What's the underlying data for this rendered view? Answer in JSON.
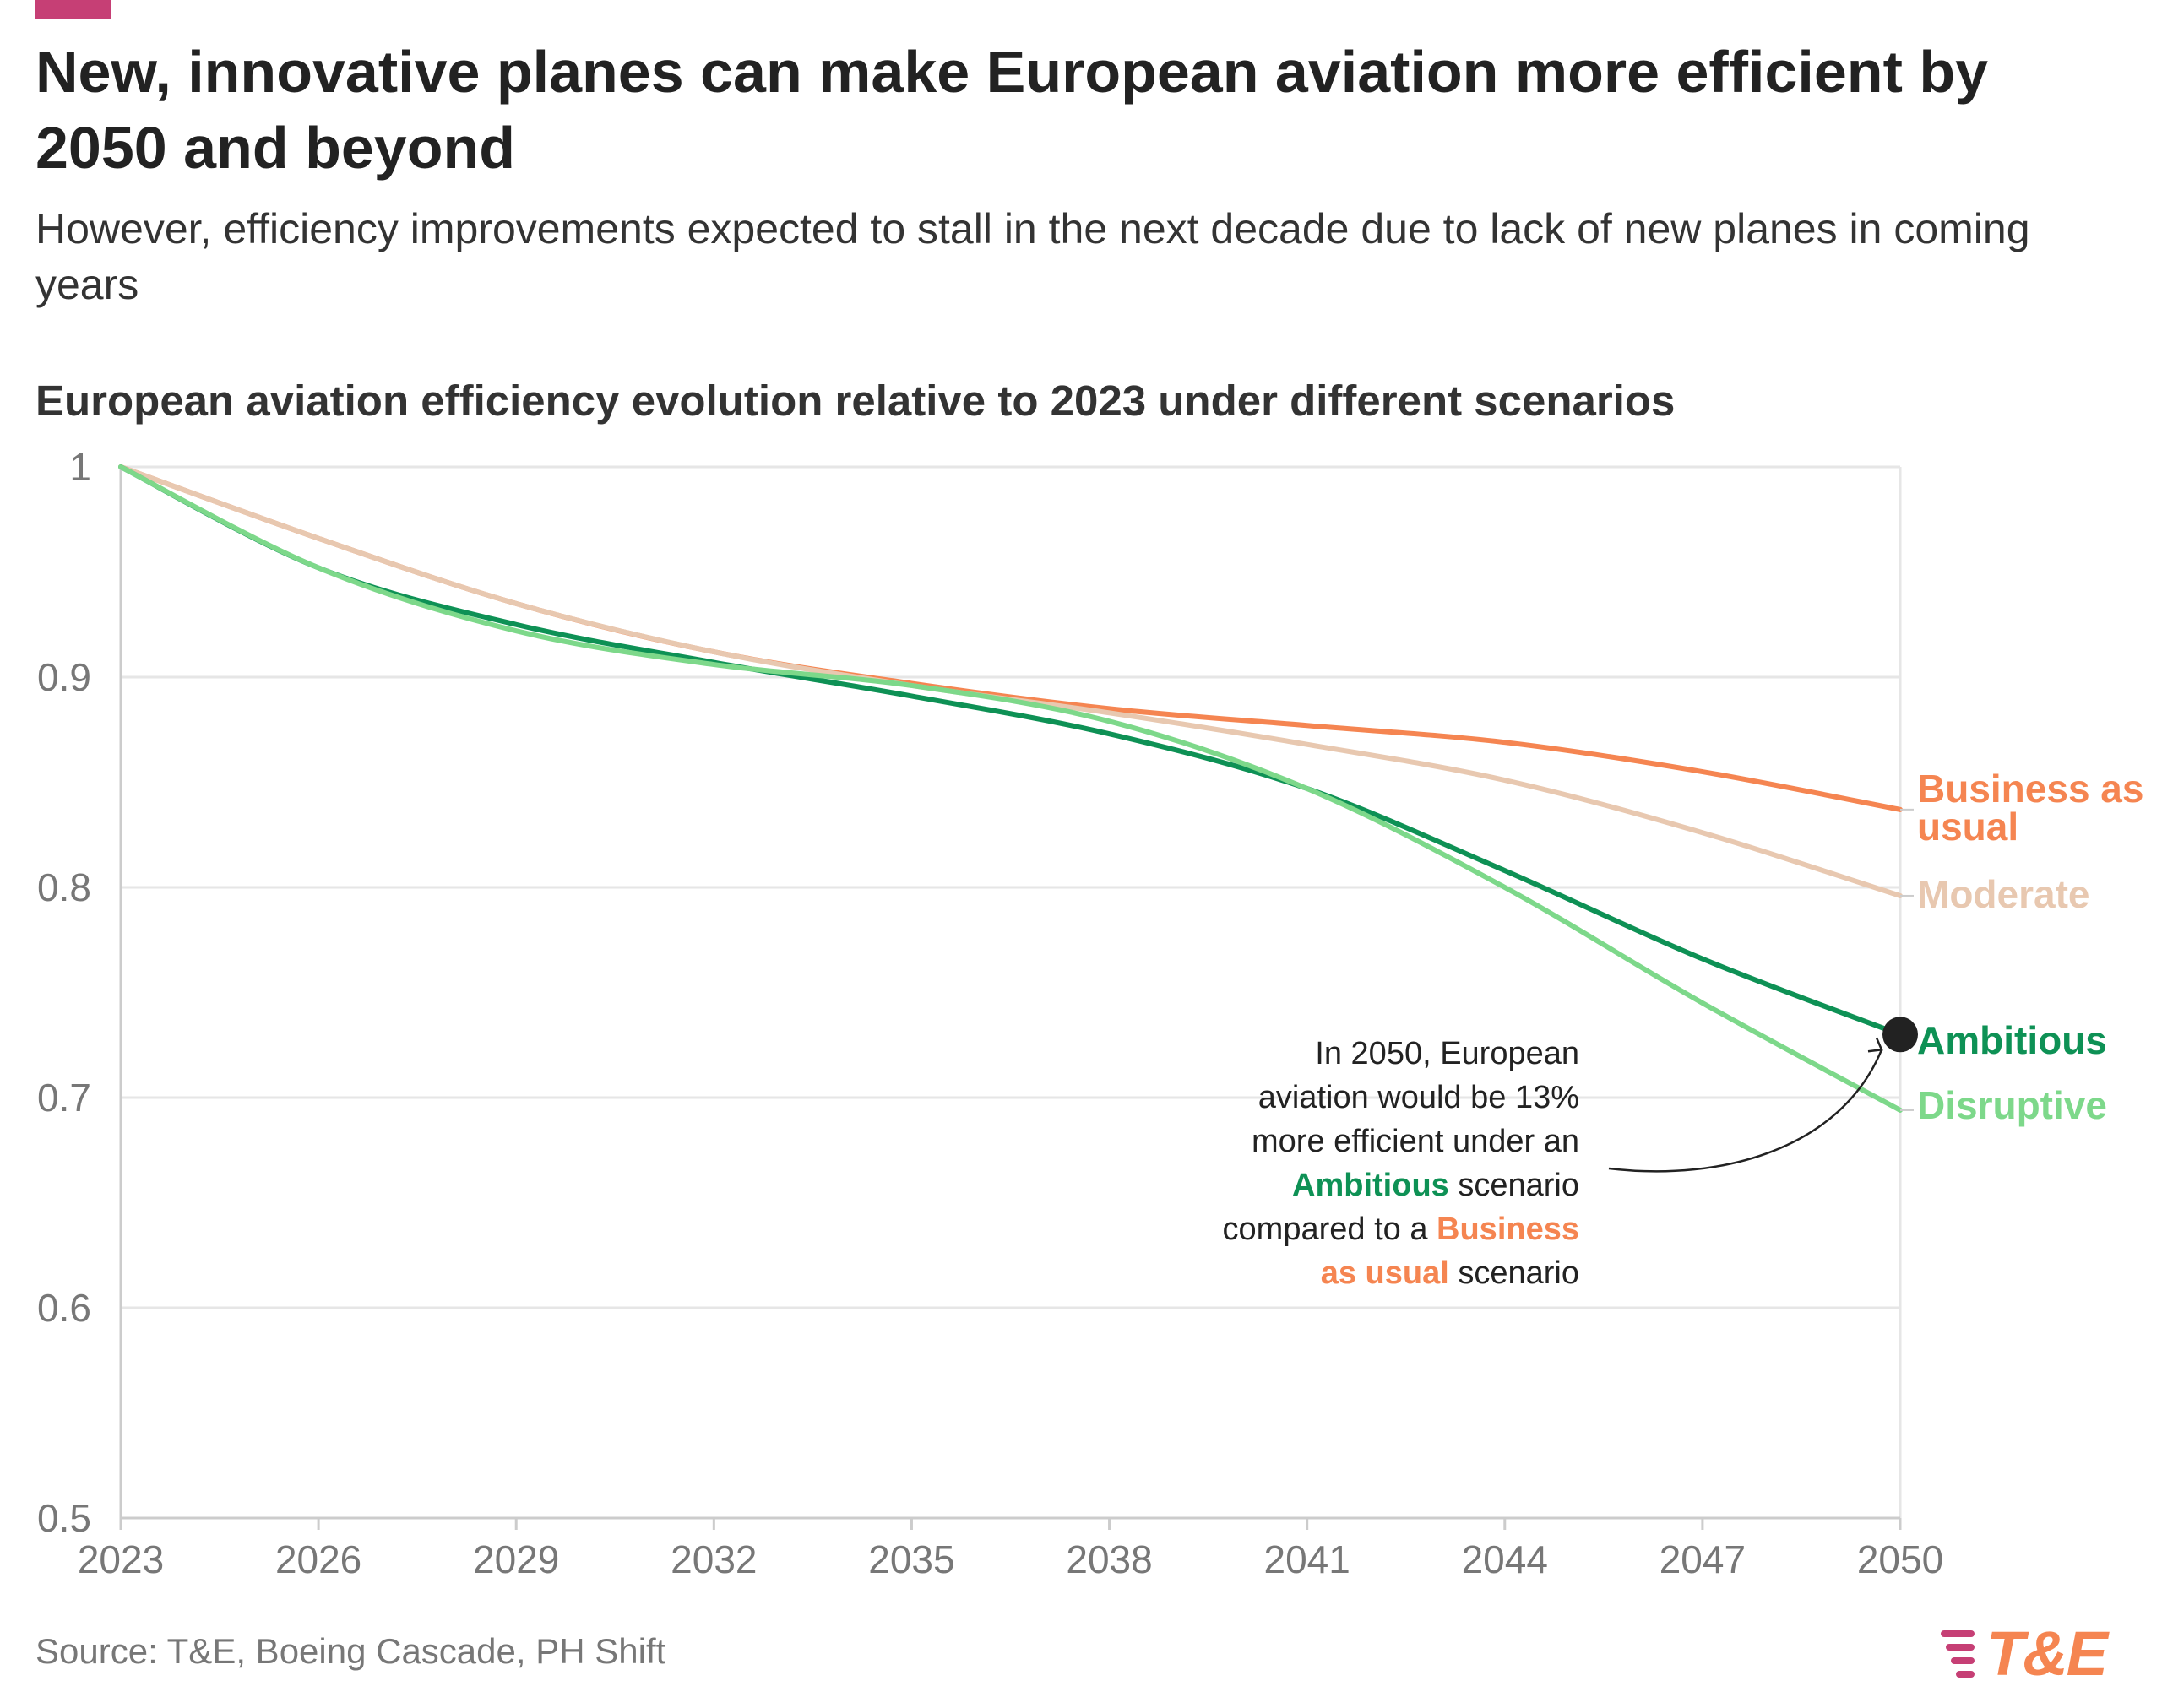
{
  "header": {
    "title": "New, innovative planes can make European aviation more efficient by 2050 and beyond",
    "subtitle": "However, efficiency improvements expected to stall in the next decade due to lack of new planes in coming years",
    "chart_title": "European aviation efficiency evolution relative to 2023 under different scenarios"
  },
  "colors": {
    "accent": "#c63f75",
    "business_as_usual": "#f58551",
    "moderate": "#e8c8b0",
    "ambitious": "#0e9155",
    "disruptive": "#7dd88a",
    "grid": "#e6e6e6",
    "axis": "#cccccc",
    "logo_gradient_start": "#c63f75",
    "logo_gradient_end": "#f58551"
  },
  "chart_data": {
    "type": "line",
    "title": "European aviation efficiency evolution relative to 2023 under different scenarios",
    "xlabel": "",
    "ylabel": "",
    "xlim": [
      2023,
      2050
    ],
    "ylim": [
      0.5,
      1.0
    ],
    "x_ticks": [
      "2023",
      "2026",
      "2029",
      "2032",
      "2035",
      "2038",
      "2041",
      "2044",
      "2047",
      "2050"
    ],
    "y_ticks": [
      {
        "value": 1.0,
        "label": "1"
      },
      {
        "value": 0.9,
        "label": "0.9"
      },
      {
        "value": 0.8,
        "label": "0.8"
      },
      {
        "value": 0.7,
        "label": "0.7"
      },
      {
        "value": 0.6,
        "label": "0.6"
      },
      {
        "value": 0.5,
        "label": "0.5"
      }
    ],
    "x": [
      2023,
      2026,
      2029,
      2032,
      2035,
      2038,
      2041,
      2044,
      2047,
      2050
    ],
    "series": [
      {
        "key": "business_as_usual",
        "name": "Business as usual",
        "label_lines": [
          "Business as",
          "usual"
        ],
        "values": [
          1.0,
          0.966,
          0.935,
          0.912,
          0.897,
          0.885,
          0.877,
          0.869,
          0.855,
          0.837
        ]
      },
      {
        "key": "moderate",
        "name": "Moderate",
        "label_lines": [
          "Moderate"
        ],
        "values": [
          1.0,
          0.966,
          0.935,
          0.912,
          0.896,
          0.883,
          0.868,
          0.851,
          0.826,
          0.796
        ]
      },
      {
        "key": "ambitious",
        "name": "Ambitious",
        "label_lines": [
          "Ambitious"
        ],
        "values": [
          1.0,
          0.952,
          0.925,
          0.907,
          0.891,
          0.873,
          0.847,
          0.808,
          0.766,
          0.73
        ]
      },
      {
        "key": "disruptive",
        "name": "Disruptive",
        "label_lines": [
          "Disruptive"
        ],
        "values": [
          1.0,
          0.952,
          0.922,
          0.906,
          0.896,
          0.879,
          0.847,
          0.8,
          0.745,
          0.694
        ]
      }
    ],
    "highlight_point": {
      "series": "Ambitious",
      "x": 2050,
      "y": 0.73
    }
  },
  "annotation": {
    "line1": "In 2050, European",
    "line2": "aviation would be 13%",
    "line3": "more efficient under an",
    "ambitious_word": "Ambitious",
    "after_ambitious": " scenario",
    "compared": "compared to a ",
    "business_word_1": "Business",
    "business_word_2": "as usual",
    "after_business": " scenario"
  },
  "footer": {
    "source": "Source: T&E, Boeing Cascade, PH Shift",
    "logo_text": "T&E"
  }
}
